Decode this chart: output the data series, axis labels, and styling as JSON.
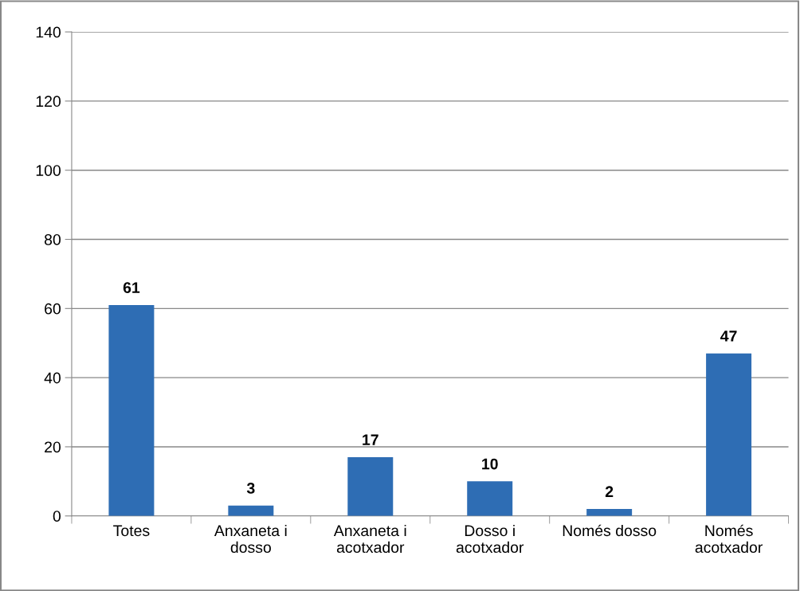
{
  "chart_data": {
    "type": "bar",
    "categories": [
      "Totes",
      "Anxaneta i\ndosso",
      "Anxaneta i\nacotxador",
      "Dosso i\nacotxador",
      "Només dosso",
      "Només\nacotxador"
    ],
    "values": [
      61,
      3,
      17,
      10,
      2,
      47
    ],
    "color": "#2e6db4",
    "ylim": [
      0,
      140
    ],
    "yticks": [
      0,
      20,
      40,
      60,
      80,
      100,
      120,
      140
    ],
    "grid": "y",
    "data_labels": true
  }
}
